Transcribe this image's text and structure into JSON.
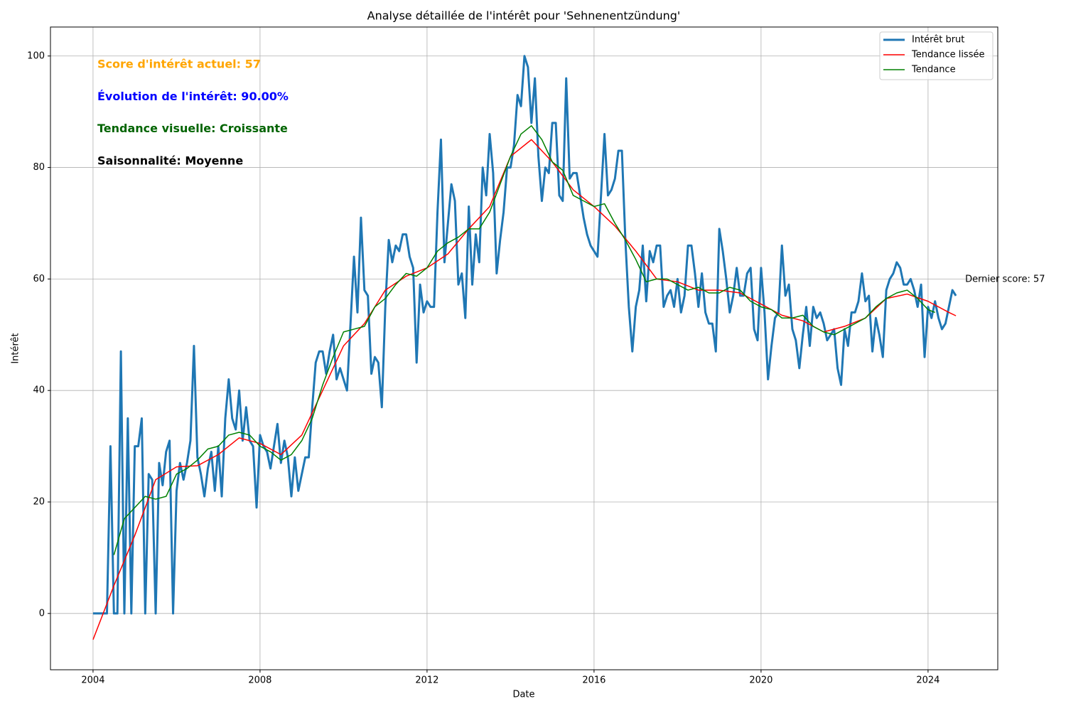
{
  "chart_data": {
    "type": "line",
    "title": "Analyse détaillée de l'intérêt pour 'Sehnenentzündung'",
    "x_label": "Date",
    "y_label": "Intérêt",
    "xlim": [
      2002.98,
      2025.67
    ],
    "ylim": [
      -10.1,
      105.2
    ],
    "xticks": [
      2004,
      2008,
      2012,
      2016,
      2020,
      2024
    ],
    "yticks": [
      0,
      20,
      40,
      60,
      80,
      100
    ],
    "grid": true,
    "legend": "upper right",
    "series": [
      {
        "name": "Intérêt brut",
        "color": "#1f77b4",
        "x": [
          2004,
          2004.083,
          2004.167,
          2004.25,
          2004.333,
          2004.417,
          2004.5,
          2004.583,
          2004.667,
          2004.75,
          2004.833,
          2004.917,
          2005,
          2005.083,
          2005.167,
          2005.25,
          2005.333,
          2005.417,
          2005.5,
          2005.583,
          2005.667,
          2005.75,
          2005.833,
          2005.917,
          2006,
          2006.083,
          2006.167,
          2006.25,
          2006.333,
          2006.417,
          2006.5,
          2006.583,
          2006.667,
          2006.75,
          2006.833,
          2006.917,
          2007,
          2007.083,
          2007.167,
          2007.25,
          2007.333,
          2007.417,
          2007.5,
          2007.583,
          2007.667,
          2007.75,
          2007.833,
          2007.917,
          2008,
          2008.083,
          2008.167,
          2008.25,
          2008.333,
          2008.417,
          2008.5,
          2008.583,
          2008.667,
          2008.75,
          2008.833,
          2008.917,
          2009,
          2009.083,
          2009.167,
          2009.25,
          2009.333,
          2009.417,
          2009.5,
          2009.583,
          2009.667,
          2009.75,
          2009.833,
          2009.917,
          2010,
          2010.083,
          2010.167,
          2010.25,
          2010.333,
          2010.417,
          2010.5,
          2010.583,
          2010.667,
          2010.75,
          2010.833,
          2010.917,
          2011,
          2011.083,
          2011.167,
          2011.25,
          2011.333,
          2011.417,
          2011.5,
          2011.583,
          2011.667,
          2011.75,
          2011.833,
          2011.917,
          2012,
          2012.083,
          2012.167,
          2012.25,
          2012.333,
          2012.417,
          2012.5,
          2012.583,
          2012.667,
          2012.75,
          2012.833,
          2012.917,
          2013,
          2013.083,
          2013.167,
          2013.25,
          2013.333,
          2013.417,
          2013.5,
          2013.583,
          2013.667,
          2013.75,
          2013.833,
          2013.917,
          2014,
          2014.083,
          2014.167,
          2014.25,
          2014.333,
          2014.417,
          2014.5,
          2014.583,
          2014.667,
          2014.75,
          2014.833,
          2014.917,
          2015,
          2015.083,
          2015.167,
          2015.25,
          2015.333,
          2015.417,
          2015.5,
          2015.583,
          2015.667,
          2015.75,
          2015.833,
          2015.917,
          2016,
          2016.083,
          2016.167,
          2016.25,
          2016.333,
          2016.417,
          2016.5,
          2016.583,
          2016.667,
          2016.75,
          2016.833,
          2016.917,
          2017,
          2017.083,
          2017.167,
          2017.25,
          2017.333,
          2017.417,
          2017.5,
          2017.583,
          2017.667,
          2017.75,
          2017.833,
          2017.917,
          2018,
          2018.083,
          2018.167,
          2018.25,
          2018.333,
          2018.417,
          2018.5,
          2018.583,
          2018.667,
          2018.75,
          2018.833,
          2018.917,
          2019,
          2019.083,
          2019.167,
          2019.25,
          2019.333,
          2019.417,
          2019.5,
          2019.583,
          2019.667,
          2019.75,
          2019.833,
          2019.917,
          2020,
          2020.083,
          2020.167,
          2020.25,
          2020.333,
          2020.417,
          2020.5,
          2020.583,
          2020.667,
          2020.75,
          2020.833,
          2020.917,
          2021,
          2021.083,
          2021.167,
          2021.25,
          2021.333,
          2021.417,
          2021.5,
          2021.583,
          2021.667,
          2021.75,
          2021.833,
          2021.917,
          2022,
          2022.083,
          2022.167,
          2022.25,
          2022.333,
          2022.417,
          2022.5,
          2022.583,
          2022.667,
          2022.75,
          2022.833,
          2022.917,
          2023,
          2023.083,
          2023.167,
          2023.25,
          2023.333,
          2023.417,
          2023.5,
          2023.583,
          2023.667,
          2023.75,
          2023.833,
          2023.917,
          2024,
          2024.083,
          2024.167,
          2024.25,
          2024.333,
          2024.417,
          2024.5,
          2024.583,
          2024.667
        ],
        "values": [
          0,
          0,
          0,
          0,
          0,
          30,
          0,
          0,
          47,
          0,
          35,
          0,
          30,
          30,
          35,
          0,
          25,
          24,
          0,
          27,
          23,
          29,
          31,
          0,
          22,
          27,
          24,
          27,
          31,
          48,
          28,
          25,
          21,
          26,
          29,
          22,
          30,
          21,
          35,
          42,
          35,
          33,
          40,
          31,
          37,
          31,
          30,
          19,
          32,
          30,
          29,
          26,
          30,
          34,
          27,
          31,
          28,
          21,
          28,
          22,
          25,
          28,
          28,
          37,
          45,
          47,
          47,
          43,
          47,
          50,
          42,
          44,
          42,
          40,
          52,
          64,
          54,
          71,
          58,
          57,
          43,
          46,
          45,
          37,
          55,
          67,
          63,
          66,
          65,
          68,
          68,
          64,
          62,
          45,
          59,
          54,
          56,
          55,
          55,
          72,
          85,
          63,
          70,
          77,
          74,
          59,
          61,
          53,
          73,
          59,
          68,
          63,
          80,
          75,
          86,
          79,
          61,
          67,
          72,
          80,
          80,
          84,
          93,
          91,
          100,
          98,
          88,
          96,
          82,
          74,
          80,
          79,
          88,
          88,
          75,
          74,
          96,
          78,
          79,
          79,
          75,
          71,
          68,
          66,
          65,
          64,
          75,
          86,
          75,
          76,
          78,
          83,
          83,
          67,
          55,
          47,
          55,
          58,
          66,
          56,
          65,
          63,
          66,
          66,
          55,
          57,
          58,
          55,
          60,
          54,
          57,
          66,
          66,
          61,
          55,
          61,
          54,
          52,
          52,
          47,
          69,
          65,
          60,
          54,
          57,
          62,
          57,
          57,
          61,
          62,
          51,
          49,
          62,
          54,
          42,
          48,
          53,
          54,
          66,
          57,
          59,
          51,
          49,
          44,
          50,
          55,
          48,
          55,
          53,
          54,
          52,
          49,
          50,
          51,
          44,
          41,
          51,
          48,
          54,
          54,
          56,
          61,
          56,
          57,
          47,
          53,
          50,
          46,
          58,
          60,
          61,
          63,
          62,
          59,
          59,
          60,
          58,
          55,
          59,
          46,
          55,
          53,
          56,
          53,
          51,
          52,
          55,
          58,
          57
        ]
      },
      {
        "name": "Tendance lissée",
        "color": "#ff0000",
        "x": [
          2004,
          2004.5,
          2005,
          2005.5,
          2006,
          2006.5,
          2007,
          2007.5,
          2008,
          2008.5,
          2009,
          2009.5,
          2010,
          2010.5,
          2011,
          2011.5,
          2012,
          2012.5,
          2013,
          2013.5,
          2014,
          2014.5,
          2015,
          2015.5,
          2016,
          2016.5,
          2017,
          2017.5,
          2018,
          2018.5,
          2019,
          2019.5,
          2020,
          2020.5,
          2021,
          2021.5,
          2022,
          2022.5,
          2023,
          2023.5,
          2024,
          2024.5,
          2024.667
        ],
        "values": [
          -4.7,
          5,
          14,
          24,
          26.3,
          26.5,
          28.5,
          31.5,
          30.5,
          28.5,
          32,
          40,
          48,
          52,
          58,
          60.5,
          62,
          64.5,
          69,
          73,
          82,
          85,
          81,
          76,
          73,
          69.5,
          65,
          60,
          59.5,
          58,
          58,
          57.5,
          55.5,
          53.5,
          52.5,
          50.5,
          51.5,
          53,
          56.5,
          57.3,
          56,
          54,
          53.4
        ]
      },
      {
        "name": "Tendance",
        "color": "#008000",
        "x": [
          2004.5,
          2004.75,
          2005,
          2005.25,
          2005.5,
          2005.75,
          2006,
          2006.25,
          2006.5,
          2006.75,
          2007,
          2007.25,
          2007.5,
          2007.75,
          2008,
          2008.25,
          2008.5,
          2008.75,
          2009,
          2009.25,
          2009.5,
          2009.75,
          2010,
          2010.25,
          2010.5,
          2010.75,
          2011,
          2011.25,
          2011.5,
          2011.75,
          2012,
          2012.25,
          2012.5,
          2012.75,
          2013,
          2013.25,
          2013.5,
          2013.75,
          2014,
          2014.25,
          2014.5,
          2014.75,
          2015,
          2015.25,
          2015.5,
          2015.75,
          2016,
          2016.25,
          2016.5,
          2016.75,
          2017,
          2017.25,
          2017.5,
          2017.75,
          2018,
          2018.25,
          2018.5,
          2018.75,
          2019,
          2019.25,
          2019.5,
          2019.75,
          2020,
          2020.25,
          2020.5,
          2020.75,
          2021,
          2021.25,
          2021.5,
          2021.75,
          2022,
          2022.25,
          2022.5,
          2022.75,
          2023,
          2023.25,
          2023.5,
          2023.75,
          2024,
          2024.167
        ],
        "values": [
          10.5,
          17,
          19,
          21,
          20.5,
          21,
          25,
          26,
          27.5,
          29.5,
          30,
          32,
          32.5,
          32,
          30,
          29,
          27.5,
          28.5,
          31,
          35,
          41,
          46,
          50.5,
          51,
          51.5,
          55,
          56.5,
          59,
          61,
          60.5,
          62,
          65,
          66.5,
          67.5,
          69,
          69,
          72,
          77,
          82,
          86,
          87.5,
          85,
          81,
          79.5,
          75,
          74,
          73,
          73.5,
          70,
          67,
          63.5,
          59.5,
          60,
          60,
          59,
          58,
          58.5,
          57.5,
          57.5,
          58.5,
          58,
          56,
          55,
          54.5,
          53,
          53,
          53.5,
          51.5,
          50.5,
          50,
          51,
          52,
          53,
          55,
          56.5,
          57.5,
          58,
          56.5,
          54.5,
          54
        ]
      }
    ],
    "annotations": [
      {
        "text": "Score d'intérêt actuel: 57",
        "color": "#ffa500"
      },
      {
        "text": "Évolution de l'intérêt: 90.00%",
        "color": "#0000ff"
      },
      {
        "text": "Tendance visuelle: Croissante",
        "color": "#006400"
      },
      {
        "text": "Saisonnalité: Moyenne",
        "color": "#000000"
      }
    ],
    "last_label": "Dernier score: 57"
  }
}
